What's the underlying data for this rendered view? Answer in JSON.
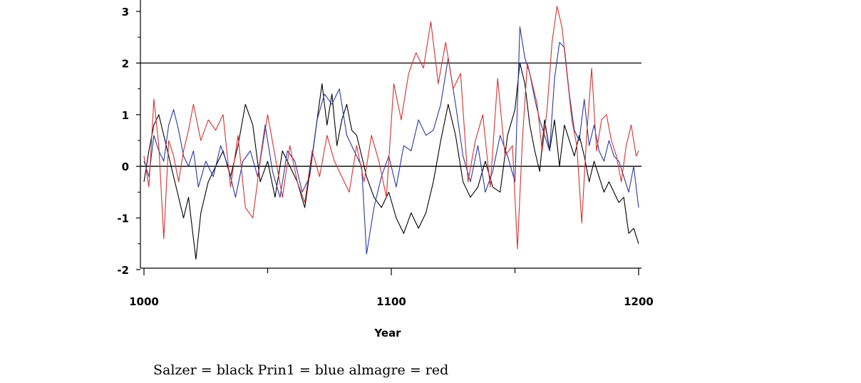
{
  "chart_data": {
    "type": "line",
    "xlabel": "Year",
    "ylabel": "",
    "xlim": [
      1000,
      1200
    ],
    "ylim": [
      -2,
      3
    ],
    "x_ticks": [
      1000,
      1100,
      1200
    ],
    "x_tick_labels": [
      "1000",
      "1100",
      "1200"
    ],
    "x_minor_ticks": [
      1050,
      1150
    ],
    "y_ticks": [
      -2,
      -1,
      0,
      1,
      2,
      3
    ],
    "y_tick_labels": [
      "-2",
      "-1",
      "0",
      "1",
      "2",
      "3"
    ],
    "reference_lines": [
      0,
      2
    ],
    "caption": "Salzer =  black Prin1 =  blue almagre =  red",
    "series": [
      {
        "name": "Salzer",
        "color": "#000000",
        "x": [
          1000,
          1002,
          1004,
          1006,
          1008,
          1010,
          1012,
          1014,
          1016,
          1018,
          1020,
          1021,
          1023,
          1026,
          1029,
          1032,
          1035,
          1038,
          1041,
          1044,
          1047,
          1050,
          1053,
          1056,
          1059,
          1062,
          1065,
          1068,
          1070,
          1072,
          1074,
          1076,
          1078,
          1080,
          1082,
          1084,
          1086,
          1088,
          1090,
          1093,
          1096,
          1099,
          1102,
          1105,
          1108,
          1111,
          1114,
          1117,
          1120,
          1123,
          1126,
          1129,
          1132,
          1135,
          1138,
          1141,
          1144,
          1147,
          1150,
          1152,
          1154,
          1156,
          1158,
          1160,
          1162,
          1164,
          1166,
          1168,
          1170,
          1172,
          1174,
          1176,
          1178,
          1180,
          1182,
          1184,
          1186,
          1188,
          1190,
          1192,
          1194,
          1196,
          1198,
          1200
        ],
        "values": [
          -0.3,
          0.3,
          0.8,
          1.0,
          0.6,
          0.2,
          -0.2,
          -0.6,
          -1.0,
          -0.6,
          -1.4,
          -1.8,
          -0.9,
          -0.3,
          0.0,
          0.3,
          -0.2,
          0.4,
          1.2,
          0.8,
          -0.3,
          0.1,
          -0.6,
          0.3,
          0.0,
          -0.3,
          -0.8,
          0.2,
          0.9,
          1.6,
          0.8,
          1.4,
          0.4,
          0.9,
          1.2,
          0.7,
          0.6,
          0.2,
          -0.2,
          -0.6,
          -0.8,
          -0.5,
          -1.0,
          -1.3,
          -0.9,
          -1.2,
          -0.9,
          -0.3,
          0.5,
          1.2,
          0.6,
          -0.3,
          -0.6,
          -0.4,
          0.1,
          -0.4,
          -0.5,
          0.6,
          1.1,
          2.0,
          1.6,
          0.8,
          0.3,
          -0.1,
          0.9,
          0.3,
          0.9,
          0.0,
          0.8,
          0.5,
          0.2,
          0.6,
          0.2,
          -0.3,
          0.1,
          -0.2,
          -0.5,
          -0.3,
          -0.5,
          -0.7,
          -0.6,
          -1.3,
          -1.2,
          -1.5
        ]
      },
      {
        "name": "Prin1",
        "color": "#2838a8",
        "x": [
          1000,
          1002,
          1004,
          1006,
          1008,
          1010,
          1012,
          1014,
          1016,
          1018,
          1020,
          1022,
          1025,
          1028,
          1031,
          1034,
          1037,
          1040,
          1043,
          1046,
          1049,
          1052,
          1055,
          1058,
          1061,
          1064,
          1067,
          1070,
          1073,
          1076,
          1079,
          1082,
          1085,
          1088,
          1090,
          1093,
          1096,
          1099,
          1102,
          1105,
          1108,
          1111,
          1114,
          1117,
          1120,
          1123,
          1126,
          1129,
          1132,
          1135,
          1138,
          1141,
          1144,
          1147,
          1150,
          1152,
          1154,
          1156,
          1158,
          1160,
          1162,
          1164,
          1166,
          1168,
          1170,
          1172,
          1174,
          1176,
          1178,
          1180,
          1182,
          1184,
          1186,
          1188,
          1190,
          1192,
          1194,
          1196,
          1198,
          1200
        ],
        "values": [
          0.1,
          -0.2,
          0.6,
          0.3,
          0.1,
          0.8,
          1.1,
          0.7,
          0.2,
          0.0,
          0.3,
          -0.4,
          0.1,
          -0.2,
          0.4,
          0.0,
          -0.6,
          0.1,
          0.3,
          -0.2,
          0.8,
          -0.1,
          -0.6,
          0.3,
          0.1,
          -0.5,
          -0.2,
          0.9,
          1.4,
          1.2,
          1.5,
          0.6,
          0.3,
          0.0,
          -1.7,
          -0.8,
          -0.2,
          0.2,
          -0.4,
          0.4,
          0.3,
          0.9,
          0.6,
          0.7,
          1.2,
          2.1,
          1.2,
          0.2,
          -0.3,
          0.4,
          -0.5,
          -0.1,
          0.6,
          0.2,
          -0.3,
          2.7,
          2.1,
          1.8,
          1.3,
          0.9,
          0.6,
          0.3,
          1.7,
          2.4,
          2.3,
          1.4,
          0.7,
          0.5,
          1.3,
          0.4,
          0.8,
          0.3,
          0.1,
          0.5,
          0.2,
          0.1,
          -0.2,
          -0.5,
          0.0,
          -0.8
        ]
      },
      {
        "name": "almagre",
        "color": "#d83030",
        "x": [
          1000,
          1002,
          1004,
          1006,
          1008,
          1010,
          1012,
          1014,
          1016,
          1018,
          1020,
          1023,
          1026,
          1029,
          1032,
          1035,
          1038,
          1041,
          1044,
          1047,
          1050,
          1053,
          1056,
          1059,
          1062,
          1065,
          1068,
          1071,
          1074,
          1077,
          1080,
          1083,
          1086,
          1089,
          1092,
          1095,
          1098,
          1101,
          1104,
          1107,
          1110,
          1113,
          1116,
          1119,
          1122,
          1125,
          1128,
          1131,
          1134,
          1137,
          1140,
          1143,
          1146,
          1149,
          1151,
          1153,
          1155,
          1157,
          1159,
          1161,
          1163,
          1165,
          1167,
          1169,
          1171,
          1173,
          1175,
          1177,
          1179,
          1181,
          1183,
          1185,
          1187,
          1189,
          1191,
          1193,
          1195,
          1197,
          1199,
          1200
        ],
        "values": [
          0.2,
          -0.4,
          1.3,
          0.4,
          -1.4,
          0.5,
          0.2,
          -0.3,
          0.3,
          0.7,
          1.2,
          0.5,
          0.9,
          0.7,
          1.0,
          -0.4,
          0.6,
          -0.8,
          -1.0,
          0.1,
          1.0,
          0.2,
          -0.6,
          0.4,
          -0.3,
          -0.7,
          0.3,
          -0.2,
          0.6,
          0.1,
          -0.2,
          -0.5,
          0.4,
          -0.3,
          0.6,
          0.1,
          -0.6,
          1.6,
          0.9,
          1.8,
          2.2,
          1.9,
          2.8,
          1.6,
          2.4,
          1.5,
          1.8,
          -0.3,
          0.5,
          1.0,
          -0.4,
          1.7,
          0.2,
          0.4,
          -1.6,
          0.5,
          2.0,
          1.6,
          1.2,
          0.3,
          1.1,
          2.4,
          3.1,
          2.7,
          1.8,
          0.9,
          0.4,
          -1.1,
          0.6,
          1.9,
          0.3,
          0.9,
          1.0,
          0.5,
          0.2,
          -0.3,
          0.4,
          0.8,
          0.2,
          0.3
        ]
      }
    ]
  }
}
